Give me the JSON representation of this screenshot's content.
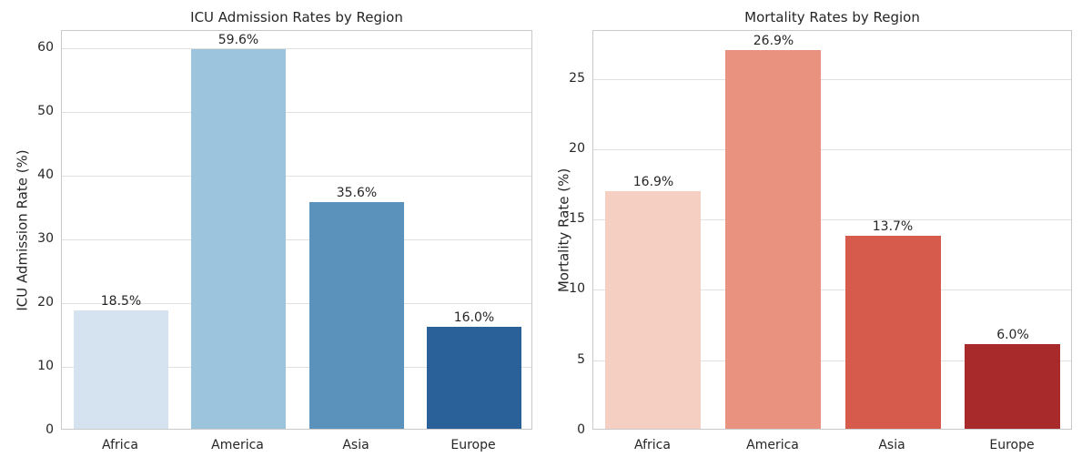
{
  "figure": {
    "background_color": "#ffffff",
    "grid_color": "#e0e0e0",
    "spine_color": "#c9c9c9",
    "text_color": "#262626"
  },
  "chart_data": [
    {
      "type": "bar",
      "title": "ICU Admission Rates by Region",
      "xlabel": "",
      "ylabel": "ICU Admission Rate (%)",
      "categories": [
        "Africa",
        "America",
        "Asia",
        "Europe"
      ],
      "values": [
        18.5,
        59.6,
        35.6,
        16.0
      ],
      "value_labels": [
        "18.5%",
        "59.6%",
        "35.6%",
        "16.0%"
      ],
      "bar_colors": [
        "#d5e3f0",
        "#9cc4dc",
        "#5b92bc",
        "#2b6199"
      ],
      "yticks": [
        0,
        10,
        20,
        30,
        40,
        50,
        60
      ],
      "ytick_labels": [
        "0",
        "10",
        "20",
        "30",
        "40",
        "50",
        "60"
      ],
      "ylim": [
        0,
        62.7
      ],
      "grid": true,
      "legend_position": "none"
    },
    {
      "type": "bar",
      "title": "Mortality Rates by Region",
      "xlabel": "",
      "ylabel": "Mortality Rate (%)",
      "categories": [
        "Africa",
        "America",
        "Asia",
        "Europe"
      ],
      "values": [
        16.9,
        26.9,
        13.7,
        6.0
      ],
      "value_labels": [
        "16.9%",
        "26.9%",
        "13.7%",
        "6.0%"
      ],
      "bar_colors": [
        "#f5d0c2",
        "#ea9280",
        "#d75b4c",
        "#a82a2b"
      ],
      "yticks": [
        0,
        5,
        10,
        15,
        20,
        25
      ],
      "ytick_labels": [
        "0",
        "5",
        "10",
        "15",
        "20",
        "25"
      ],
      "ylim": [
        0,
        28.4
      ],
      "grid": true,
      "legend_position": "none"
    }
  ]
}
